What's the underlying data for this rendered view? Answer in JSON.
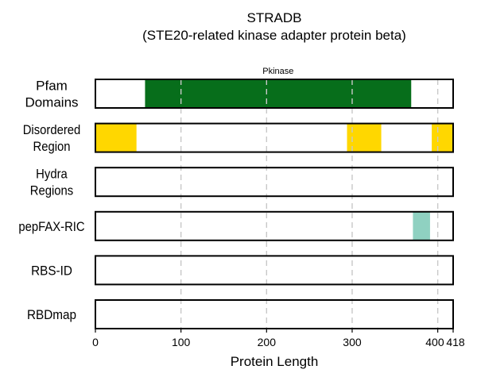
{
  "chart_data": {
    "type": "track",
    "title_line1": "STRADB",
    "title_line2": "(STE20-related kinase adapter protein beta)",
    "xlabel": "Protein Length",
    "protein_length": 418,
    "xlim": [
      0,
      418
    ],
    "xticks": [
      0,
      100,
      200,
      300,
      400,
      418
    ],
    "grid_positions": [
      100,
      200,
      300,
      400
    ],
    "rows": [
      {
        "label_lines": [
          "Pfam",
          "Domains"
        ],
        "color": "#076e1b",
        "segments": [
          {
            "start": 58,
            "end": 369,
            "label": "Pkinase"
          }
        ]
      },
      {
        "label_lines": [
          "Disordered",
          "Region"
        ],
        "color": "#ffd700",
        "segments": [
          {
            "start": 0,
            "end": 48
          },
          {
            "start": 294,
            "end": 334
          },
          {
            "start": 393,
            "end": 418
          }
        ]
      },
      {
        "label_lines": [
          "Hydra",
          "Regions"
        ],
        "color": "#8fd1c1",
        "segments": []
      },
      {
        "label_lines": [
          "pepFAX-RIC"
        ],
        "color": "#8fd1c1",
        "segments": [
          {
            "start": 371,
            "end": 391
          }
        ]
      },
      {
        "label_lines": [
          "RBS-ID"
        ],
        "color": "#8fd1c1",
        "segments": []
      },
      {
        "label_lines": [
          "RBDmap"
        ],
        "color": "#8fd1c1",
        "segments": []
      }
    ]
  }
}
